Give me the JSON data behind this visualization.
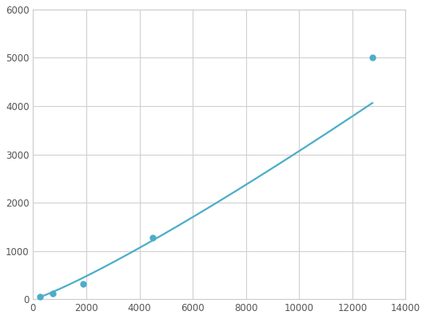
{
  "x": [
    250,
    750,
    1875,
    4500,
    12750
  ],
  "y": [
    60,
    120,
    320,
    1270,
    5000
  ],
  "line_color": "#4baec9",
  "marker_color": "#4baec9",
  "marker_size": 5,
  "line_width": 1.6,
  "xlim": [
    0,
    14000
  ],
  "ylim": [
    0,
    6000
  ],
  "xticks": [
    0,
    2000,
    4000,
    6000,
    8000,
    10000,
    12000,
    14000
  ],
  "yticks": [
    0,
    1000,
    2000,
    3000,
    4000,
    5000,
    6000
  ],
  "grid_color": "#d0d0d0",
  "background_color": "#ffffff",
  "spine_color": "#cccccc"
}
